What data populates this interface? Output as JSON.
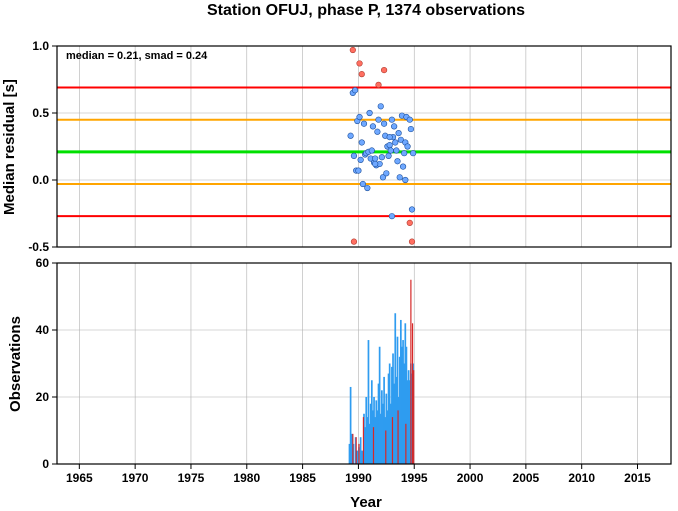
{
  "chart_data": [
    {
      "type": "scatter",
      "title": "Station OFUJ, phase P, 1374 observations",
      "ylabel": "Median residual [s]",
      "annotation": "median = 0.21, smad = 0.24",
      "xlim": [
        1963,
        2018
      ],
      "ylim": [
        -0.5,
        1.0
      ],
      "yticks": [
        -0.5,
        0.0,
        0.5,
        1.0
      ],
      "ytick_labels": [
        "-0.5",
        "0.0",
        "0.5",
        "1.0"
      ],
      "grid": true,
      "colors": {
        "median": "#00e000",
        "one_smad": "#ffa500",
        "two_smad": "#ff0000",
        "inlier": "#6fa8ff",
        "outlier": "#ff6f61"
      },
      "reference_lines": [
        {
          "kind": "median",
          "y": 0.21
        },
        {
          "kind": "one_smad",
          "y": 0.45
        },
        {
          "kind": "one_smad",
          "y": -0.03
        },
        {
          "kind": "two_smad",
          "y": 0.69
        },
        {
          "kind": "two_smad",
          "y": -0.27
        }
      ],
      "series": [
        {
          "role": "inlier",
          "points": [
            [
              1989.3,
              0.33
            ],
            [
              1989.5,
              0.65
            ],
            [
              1989.6,
              0.18
            ],
            [
              1989.7,
              0.67
            ],
            [
              1989.8,
              0.07
            ],
            [
              1989.9,
              0.44
            ],
            [
              1990.0,
              0.07
            ],
            [
              1990.1,
              0.47
            ],
            [
              1990.2,
              0.15
            ],
            [
              1990.3,
              0.28
            ],
            [
              1990.4,
              -0.03
            ],
            [
              1990.5,
              0.42
            ],
            [
              1990.6,
              0.19
            ],
            [
              1990.7,
              0.2
            ],
            [
              1990.8,
              -0.06
            ],
            [
              1990.9,
              0.21
            ],
            [
              1991.0,
              0.5
            ],
            [
              1991.1,
              0.16
            ],
            [
              1991.2,
              0.22
            ],
            [
              1991.3,
              0.4
            ],
            [
              1991.4,
              0.13
            ],
            [
              1991.5,
              0.16
            ],
            [
              1991.6,
              0.11
            ],
            [
              1991.7,
              0.36
            ],
            [
              1991.8,
              0.45
            ],
            [
              1991.9,
              0.12
            ],
            [
              1992.0,
              0.55
            ],
            [
              1992.1,
              0.17
            ],
            [
              1992.2,
              0.02
            ],
            [
              1992.3,
              0.42
            ],
            [
              1992.4,
              0.33
            ],
            [
              1992.5,
              0.05
            ],
            [
              1992.6,
              0.25
            ],
            [
              1992.7,
              0.18
            ],
            [
              1992.8,
              0.26
            ],
            [
              1992.9,
              0.22
            ],
            [
              1993.0,
              0.45
            ],
            [
              1993.0,
              -0.27
            ],
            [
              1993.1,
              0.32
            ],
            [
              1993.2,
              0.4
            ],
            [
              1993.3,
              0.28
            ],
            [
              1993.4,
              0.22
            ],
            [
              1993.5,
              0.14
            ],
            [
              1993.6,
              0.35
            ],
            [
              1993.7,
              0.02
            ],
            [
              1993.8,
              0.3
            ],
            [
              1993.9,
              0.48
            ],
            [
              1994.0,
              0.1
            ],
            [
              1994.1,
              0.2
            ],
            [
              1994.2,
              0.28
            ],
            [
              1994.3,
              0.47
            ],
            [
              1994.4,
              0.25
            ],
            [
              1994.6,
              0.45
            ],
            [
              1994.7,
              0.38
            ],
            [
              1994.8,
              -0.22
            ],
            [
              1994.9,
              0.2
            ],
            [
              1991.5,
              0.12
            ],
            [
              1992.8,
              0.32
            ],
            [
              1994.2,
              0.0
            ]
          ]
        },
        {
          "role": "outlier",
          "points": [
            [
              1989.5,
              0.97
            ],
            [
              1989.6,
              -0.46
            ],
            [
              1990.1,
              0.87
            ],
            [
              1990.3,
              0.79
            ],
            [
              1991.8,
              0.71
            ],
            [
              1992.3,
              0.82
            ],
            [
              1994.6,
              -0.32
            ],
            [
              1994.8,
              -0.46
            ]
          ]
        }
      ]
    },
    {
      "type": "bar",
      "xlabel": "Year",
      "ylabel": "Observations",
      "xlim": [
        1963,
        2018
      ],
      "ylim": [
        0,
        60
      ],
      "xticks": [
        1965,
        1970,
        1975,
        1980,
        1985,
        1990,
        1995,
        2000,
        2005,
        2010,
        2015
      ],
      "xtick_labels": [
        "1965",
        "1970",
        "1975",
        "1980",
        "1985",
        "1990",
        "1995",
        "2000",
        "2005",
        "2010",
        "2015"
      ],
      "yticks": [
        0,
        20,
        40,
        60
      ],
      "ytick_labels": [
        "0",
        "20",
        "40",
        "60"
      ],
      "grid": true,
      "colors": {
        "bar": "#2f9cf0",
        "highlight": "#d62828"
      },
      "bars": [
        [
          1989.2,
          6
        ],
        [
          1989.3,
          23
        ],
        [
          1989.4,
          9
        ],
        [
          1989.55,
          6
        ],
        [
          1989.75,
          8
        ],
        [
          1989.9,
          4
        ],
        [
          1990.05,
          5
        ],
        [
          1990.2,
          8
        ],
        [
          1990.35,
          4
        ],
        [
          1990.5,
          15
        ],
        [
          1990.6,
          11
        ],
        [
          1990.7,
          20
        ],
        [
          1990.8,
          14
        ],
        [
          1990.9,
          37
        ],
        [
          1991.0,
          12
        ],
        [
          1991.1,
          18
        ],
        [
          1991.2,
          25
        ],
        [
          1991.3,
          16
        ],
        [
          1991.4,
          20
        ],
        [
          1991.5,
          14
        ],
        [
          1991.6,
          19
        ],
        [
          1991.7,
          16
        ],
        [
          1991.8,
          24
        ],
        [
          1991.9,
          35
        ],
        [
          1992.0,
          15
        ],
        [
          1992.1,
          22
        ],
        [
          1992.2,
          18
        ],
        [
          1992.3,
          26
        ],
        [
          1992.4,
          14
        ],
        [
          1992.5,
          21
        ],
        [
          1992.6,
          16
        ],
        [
          1992.7,
          27
        ],
        [
          1992.8,
          30
        ],
        [
          1992.9,
          18
        ],
        [
          1993.0,
          29
        ],
        [
          1993.1,
          33
        ],
        [
          1993.2,
          24
        ],
        [
          1993.3,
          45
        ],
        [
          1993.4,
          26
        ],
        [
          1993.5,
          38
        ],
        [
          1993.6,
          20
        ],
        [
          1993.7,
          32
        ],
        [
          1993.8,
          43
        ],
        [
          1993.9,
          35
        ],
        [
          1994.0,
          37
        ],
        [
          1994.1,
          30
        ],
        [
          1994.2,
          42
        ],
        [
          1994.3,
          35
        ],
        [
          1994.4,
          25
        ],
        [
          1994.5,
          28
        ],
        [
          1994.6,
          25
        ],
        [
          1994.7,
          30
        ],
        [
          1994.8,
          27
        ],
        [
          1994.9,
          30
        ]
      ],
      "highlight_bars": [
        [
          1989.5,
          9
        ],
        [
          1989.8,
          8
        ],
        [
          1990.05,
          6
        ],
        [
          1990.45,
          14
        ],
        [
          1991.35,
          11
        ],
        [
          1992.45,
          10
        ],
        [
          1993.05,
          14
        ],
        [
          1993.55,
          16
        ],
        [
          1994.25,
          12
        ],
        [
          1994.7,
          55
        ],
        [
          1994.85,
          42
        ],
        [
          1994.95,
          28
        ]
      ]
    }
  ]
}
